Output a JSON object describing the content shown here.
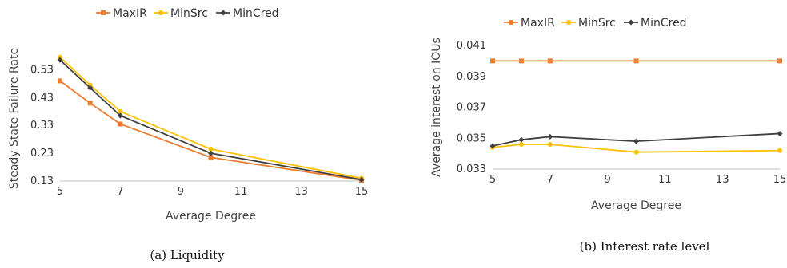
{
  "chart_data": [
    {
      "type": "line",
      "x": [
        5,
        6,
        7,
        10,
        15
      ],
      "xticks": [
        5,
        7,
        9,
        11,
        13,
        15
      ],
      "yticks": [
        "0.13",
        "0.23",
        "0.33",
        "0.43",
        "0.53"
      ],
      "xlim": [
        5,
        15
      ],
      "ylim": [
        0.13,
        0.58
      ],
      "xlabel": "Average Degree",
      "ylabel": "Steady State Failure Rate",
      "caption": "(a) Liquidity",
      "legend_position": "top",
      "series": [
        {
          "name": "MaxIR",
          "values": [
            0.49,
            0.41,
            0.335,
            0.215,
            0.133
          ],
          "color": "#ed7d31",
          "marker": "square"
        },
        {
          "name": "MinSrc",
          "values": [
            0.575,
            0.475,
            0.38,
            0.245,
            0.14
          ],
          "color": "#ffc000",
          "marker": "circle"
        },
        {
          "name": "MinCred",
          "values": [
            0.565,
            0.465,
            0.365,
            0.23,
            0.135
          ],
          "color": "#404040",
          "marker": "diamond"
        }
      ]
    },
    {
      "type": "line",
      "x": [
        5,
        6,
        7,
        10,
        15
      ],
      "xticks": [
        5,
        7,
        9,
        11,
        13,
        15
      ],
      "yticks": [
        "0.033",
        "0.035",
        "0.037",
        "0.039",
        "0.041"
      ],
      "xlim": [
        5,
        15
      ],
      "ylim": [
        0.033,
        0.041
      ],
      "xlabel": "Average Degree",
      "ylabel": "Average interest on IOUs",
      "caption": "(b) Interest rate level",
      "legend_position": "top",
      "series": [
        {
          "name": "MaxIR",
          "values": [
            0.04,
            0.04,
            0.04,
            0.04,
            0.04
          ],
          "color": "#ed7d31",
          "marker": "square"
        },
        {
          "name": "MinSrc",
          "values": [
            0.0344,
            0.0346,
            0.0346,
            0.0341,
            0.0342
          ],
          "color": "#ffc000",
          "marker": "circle"
        },
        {
          "name": "MinCred",
          "values": [
            0.0345,
            0.0349,
            0.0351,
            0.0348,
            0.0353
          ],
          "color": "#404040",
          "marker": "diamond"
        }
      ]
    }
  ]
}
